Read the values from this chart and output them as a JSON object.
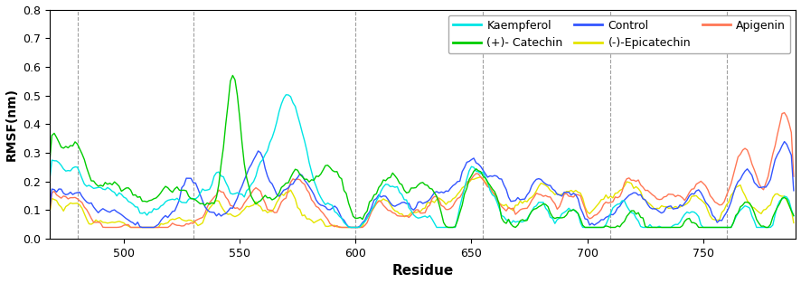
{
  "xlabel": "Residue",
  "ylabel": "RMSF(nm)",
  "xlim": [
    468,
    790
  ],
  "ylim": [
    0.0,
    0.8
  ],
  "yticks": [
    0.0,
    0.1,
    0.2,
    0.3,
    0.4,
    0.5,
    0.6,
    0.7,
    0.8
  ],
  "xticks": [
    500,
    550,
    600,
    650,
    700,
    750
  ],
  "vlines": [
    480,
    530,
    600,
    655,
    710,
    760
  ],
  "series": {
    "Kaempferol": {
      "color": "#00e5e5",
      "lw": 1.0
    },
    "(-)-Epicatechin": {
      "color": "#e5e500",
      "lw": 1.0
    },
    "(+)- Catechin": {
      "color": "#00cc00",
      "lw": 1.0
    },
    "Apigenin": {
      "color": "#ff7755",
      "lw": 1.0
    },
    "Control": {
      "color": "#3355ff",
      "lw": 1.0
    }
  },
  "legend_order": [
    "Kaempferol",
    "(+)- Catechin",
    "Control",
    "(-)-Epicatechin",
    "Apigenin"
  ],
  "legend_ncol": 3,
  "legend_fontsize": 9,
  "background_color": "#ffffff"
}
